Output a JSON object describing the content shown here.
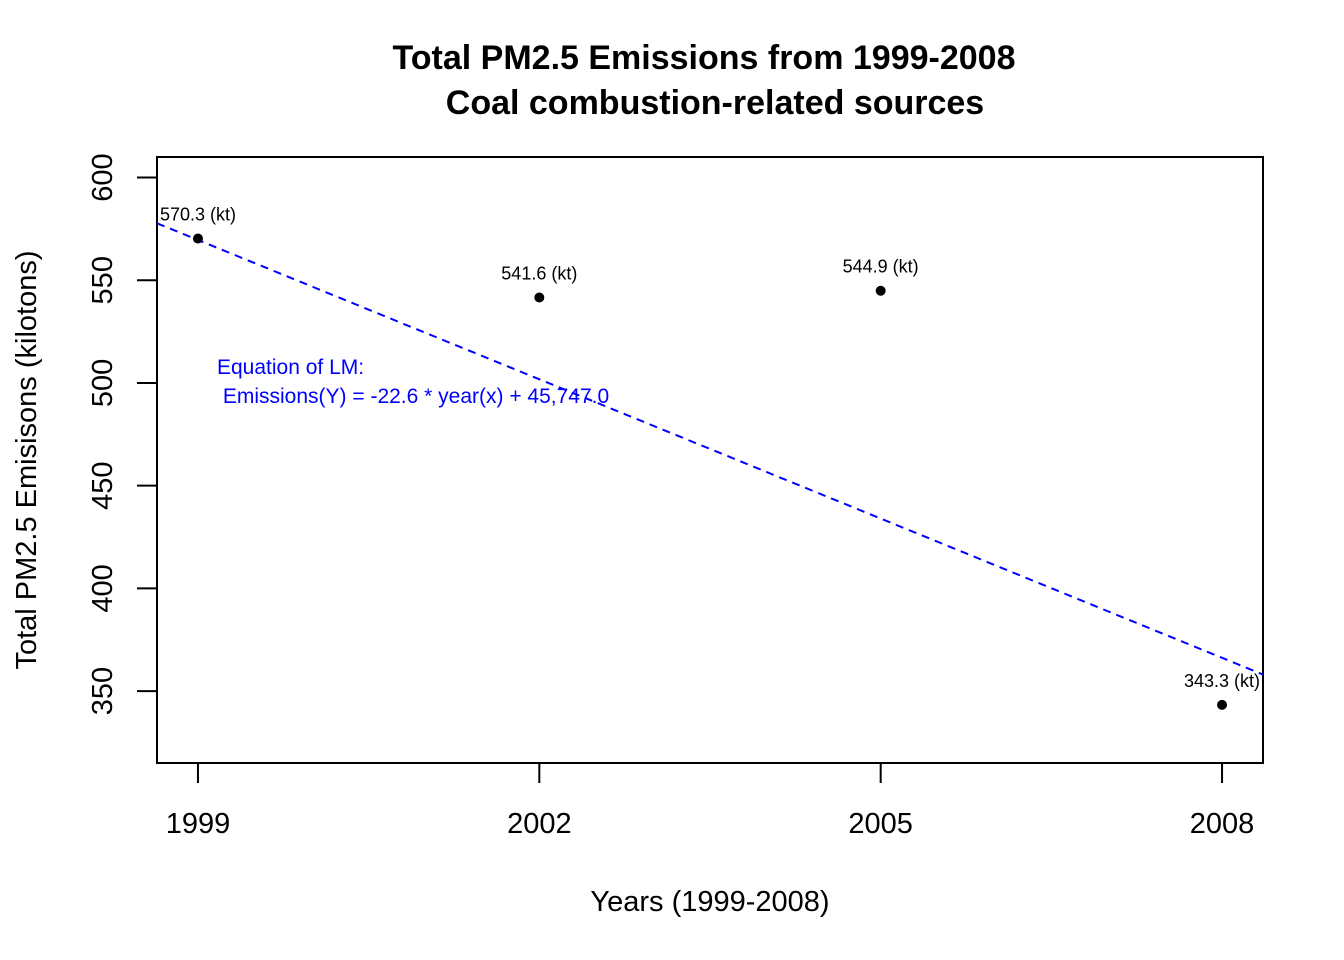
{
  "chart_data": {
    "type": "scatter",
    "title": "Total PM2.5 Emissions from 1999-2008",
    "subtitle": "Coal combustion-related sources",
    "xlabel": "Years (1999-2008)",
    "ylabel": "Total PM2.5 Emisisons (kilotons)",
    "x": [
      1999,
      2002,
      2005,
      2008
    ],
    "y": [
      570.3,
      541.6,
      544.9,
      343.3
    ],
    "point_labels": [
      "570.3 (kt)",
      "541.6 (kt)",
      "544.9 (kt)",
      "343.3 (kt)"
    ],
    "xticks": [
      "1999",
      "2002",
      "2005",
      "2008"
    ],
    "xtick_values": [
      1999,
      2002,
      2005,
      2008
    ],
    "yticks": [
      "350",
      "400",
      "450",
      "500",
      "550",
      "600"
    ],
    "ytick_values": [
      350,
      400,
      450,
      500,
      550,
      600
    ],
    "xlim": [
      1998.64,
      2008.36
    ],
    "ylim": [
      315,
      610
    ],
    "grid": false,
    "point_color": "#000000",
    "regression": {
      "slope": -22.6,
      "intercept": 45747.0,
      "color": "#0000ff",
      "style": "dashed"
    },
    "annotation": {
      "line1": "Equation of LM:",
      "line2": " Emissions(Y) = -22.6 * year(x) + 45,747.0",
      "color": "#0000ff"
    }
  }
}
